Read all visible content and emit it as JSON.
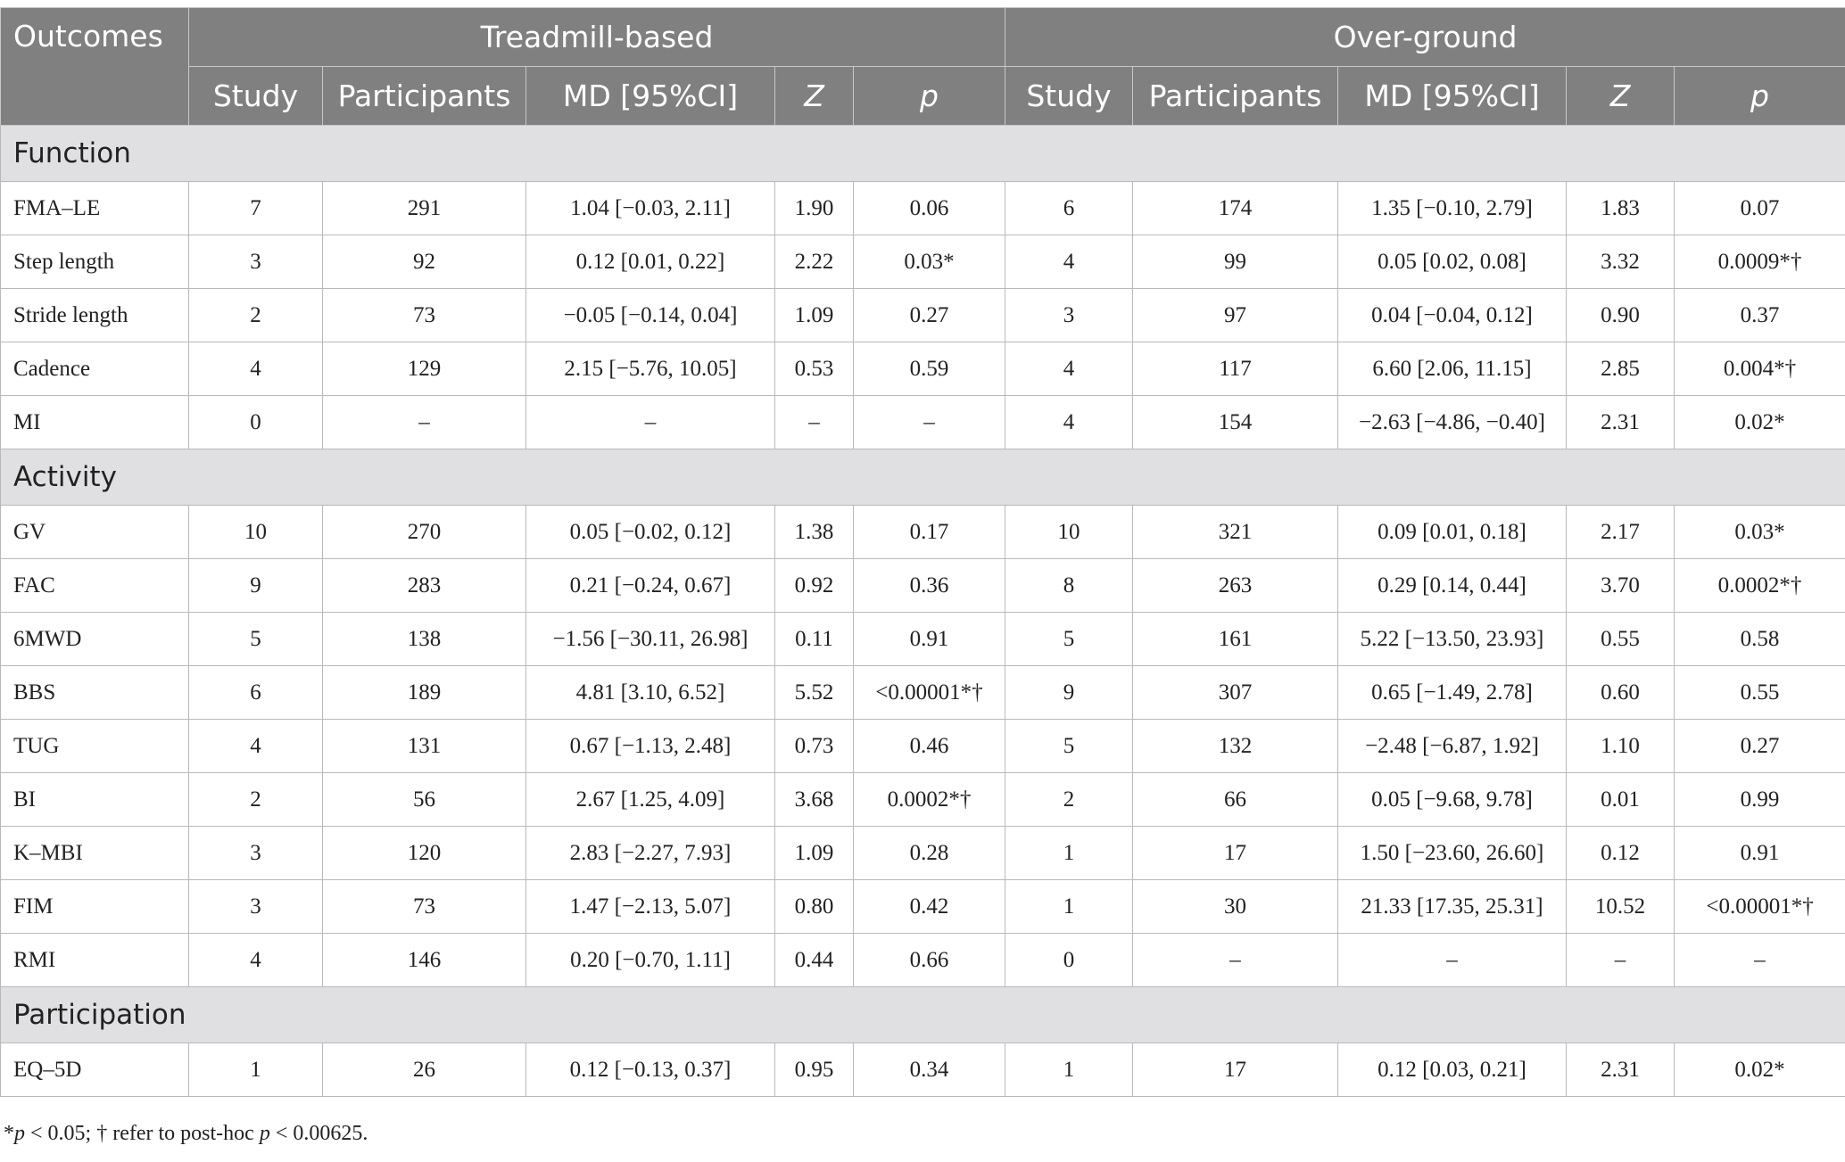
{
  "table": {
    "header": {
      "outcomes": "Outcomes",
      "groups": [
        "Treadmill-based",
        "Over-ground"
      ],
      "columns": [
        "Study",
        "Participants",
        "MD [95%CI]",
        "Z",
        "p"
      ]
    },
    "sections": [
      {
        "name": "Function",
        "rows": [
          {
            "label": "FMA–LE",
            "t": [
              "7",
              "291",
              "1.04 [−0.03, 2.11]",
              "1.90",
              "0.06"
            ],
            "o": [
              "6",
              "174",
              "1.35 [−0.10, 2.79]",
              "1.83",
              "0.07"
            ]
          },
          {
            "label": "Step length",
            "t": [
              "3",
              "92",
              "0.12 [0.01, 0.22]",
              "2.22",
              "0.03*"
            ],
            "o": [
              "4",
              "99",
              "0.05 [0.02, 0.08]",
              "3.32",
              "0.0009*†"
            ]
          },
          {
            "label": "Stride length",
            "t": [
              "2",
              "73",
              "−0.05 [−0.14, 0.04]",
              "1.09",
              "0.27"
            ],
            "o": [
              "3",
              "97",
              "0.04 [−0.04, 0.12]",
              "0.90",
              "0.37"
            ]
          },
          {
            "label": "Cadence",
            "t": [
              "4",
              "129",
              "2.15 [−5.76, 10.05]",
              "0.53",
              "0.59"
            ],
            "o": [
              "4",
              "117",
              "6.60 [2.06, 11.15]",
              "2.85",
              "0.004*†"
            ]
          },
          {
            "label": "MI",
            "t": [
              "0",
              "–",
              "–",
              "–",
              "–"
            ],
            "o": [
              "4",
              "154",
              "−2.63 [−4.86, −0.40]",
              "2.31",
              "0.02*"
            ]
          }
        ]
      },
      {
        "name": "Activity",
        "rows": [
          {
            "label": "GV",
            "t": [
              "10",
              "270",
              "0.05 [−0.02, 0.12]",
              "1.38",
              "0.17"
            ],
            "o": [
              "10",
              "321",
              "0.09 [0.01, 0.18]",
              "2.17",
              "0.03*"
            ]
          },
          {
            "label": "FAC",
            "t": [
              "9",
              "283",
              "0.21 [−0.24, 0.67]",
              "0.92",
              "0.36"
            ],
            "o": [
              "8",
              "263",
              "0.29 [0.14, 0.44]",
              "3.70",
              "0.0002*†"
            ]
          },
          {
            "label": "6MWD",
            "t": [
              "5",
              "138",
              "−1.56 [−30.11, 26.98]",
              "0.11",
              "0.91"
            ],
            "o": [
              "5",
              "161",
              "5.22 [−13.50, 23.93]",
              "0.55",
              "0.58"
            ]
          },
          {
            "label": "BBS",
            "t": [
              "6",
              "189",
              "4.81 [3.10, 6.52]",
              "5.52",
              "<0.00001*†"
            ],
            "o": [
              "9",
              "307",
              "0.65 [−1.49, 2.78]",
              "0.60",
              "0.55"
            ]
          },
          {
            "label": "TUG",
            "t": [
              "4",
              "131",
              "0.67 [−1.13, 2.48]",
              "0.73",
              "0.46"
            ],
            "o": [
              "5",
              "132",
              "−2.48 [−6.87, 1.92]",
              "1.10",
              "0.27"
            ]
          },
          {
            "label": "BI",
            "t": [
              "2",
              "56",
              "2.67 [1.25, 4.09]",
              "3.68",
              "0.0002*†"
            ],
            "o": [
              "2",
              "66",
              "0.05 [−9.68, 9.78]",
              "0.01",
              "0.99"
            ]
          },
          {
            "label": "K–MBI",
            "t": [
              "3",
              "120",
              "2.83 [−2.27, 7.93]",
              "1.09",
              "0.28"
            ],
            "o": [
              "1",
              "17",
              "1.50 [−23.60, 26.60]",
              "0.12",
              "0.91"
            ]
          },
          {
            "label": "FIM",
            "t": [
              "3",
              "73",
              "1.47 [−2.13, 5.07]",
              "0.80",
              "0.42"
            ],
            "o": [
              "1",
              "30",
              "21.33 [17.35, 25.31]",
              "10.52",
              "<0.00001*†"
            ]
          },
          {
            "label": "RMI",
            "t": [
              "4",
              "146",
              "0.20 [−0.70, 1.11]",
              "0.44",
              "0.66"
            ],
            "o": [
              "0",
              "–",
              "–",
              "–",
              "–"
            ]
          }
        ]
      },
      {
        "name": "Participation",
        "rows": [
          {
            "label": "EQ–5D",
            "t": [
              "1",
              "26",
              "0.12 [−0.13, 0.37]",
              "0.95",
              "0.34"
            ],
            "o": [
              "1",
              "17",
              "0.12 [0.03, 0.21]",
              "2.31",
              "0.02*"
            ]
          }
        ]
      }
    ]
  },
  "footnote": {
    "part1": "*",
    "p1": "p",
    "part2": " < 0.05; † refer to post-hoc ",
    "p2": "p",
    "part3": " < 0.00625."
  }
}
